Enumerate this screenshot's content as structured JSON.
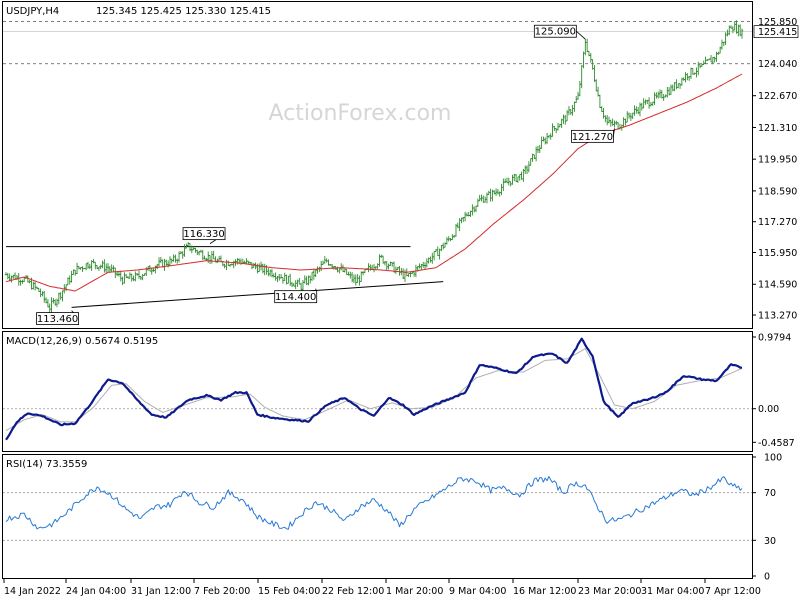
{
  "chart_data": [
    {
      "type": "candlestick",
      "panel": "price",
      "header": {
        "symbol": "USDJPY,H4",
        "ohlc": "125.345 125.425 125.330 125.415"
      },
      "watermark": "ActionForex.com",
      "ylim": [
        112.8,
        126.6
      ],
      "y_ticks": [
        "113.270",
        "114.590",
        "115.950",
        "117.270",
        "118.590",
        "119.950",
        "121.310",
        "122.670"
      ],
      "current_price_label": "125.415",
      "level_lines": [
        {
          "value": 125.85,
          "label": "125.850",
          "style": "dashed"
        },
        {
          "value": 124.04,
          "label": "124.040",
          "style": "dashed"
        }
      ],
      "annotations": [
        {
          "label": "113.460",
          "value": 113.46
        },
        {
          "label": "116.330",
          "value": 116.33
        },
        {
          "label": "114.400",
          "value": 114.4
        },
        {
          "label": "125.090",
          "value": 125.09
        },
        {
          "label": "121.270",
          "value": 121.27
        }
      ],
      "series": [
        {
          "kind": "ohlc",
          "anchors": [
            [
              0,
              115.0
            ],
            [
              10,
              114.8
            ],
            [
              18,
              114.3
            ],
            [
              24,
              113.6
            ],
            [
              30,
              114.2
            ],
            [
              38,
              115.2
            ],
            [
              46,
              115.5
            ],
            [
              56,
              115.3
            ],
            [
              64,
              114.8
            ],
            [
              72,
              114.9
            ],
            [
              82,
              115.4
            ],
            [
              92,
              115.6
            ],
            [
              100,
              116.2
            ],
            [
              110,
              115.8
            ],
            [
              118,
              115.5
            ],
            [
              128,
              115.6
            ],
            [
              138,
              115.3
            ],
            [
              146,
              115.1
            ],
            [
              154,
              114.8
            ],
            [
              162,
              114.5
            ],
            [
              170,
              115.1
            ],
            [
              176,
              115.6
            ],
            [
              184,
              115.2
            ],
            [
              192,
              114.7
            ],
            [
              200,
              115.3
            ],
            [
              206,
              115.7
            ],
            [
              214,
              115.2
            ],
            [
              220,
              114.9
            ],
            [
              228,
              115.4
            ],
            [
              236,
              115.9
            ],
            [
              244,
              116.6
            ],
            [
              252,
              117.5
            ],
            [
              260,
              118.2
            ],
            [
              268,
              118.5
            ],
            [
              276,
              119.0
            ],
            [
              284,
              119.3
            ],
            [
              292,
              120.4
            ],
            [
              300,
              121.2
            ],
            [
              308,
              121.8
            ],
            [
              314,
              122.6
            ],
            [
              318,
              125.0
            ],
            [
              322,
              123.8
            ],
            [
              326,
              122.3
            ],
            [
              330,
              121.5
            ],
            [
              336,
              121.4
            ],
            [
              342,
              121.8
            ],
            [
              350,
              122.3
            ],
            [
              358,
              122.6
            ],
            [
              366,
              123.0
            ],
            [
              374,
              123.6
            ],
            [
              382,
              123.9
            ],
            [
              390,
              124.4
            ],
            [
              398,
              125.7
            ],
            [
              404,
              125.4
            ]
          ]
        },
        {
          "kind": "ma",
          "name": "",
          "anchors": [
            [
              0,
              114.7
            ],
            [
              10,
              114.9
            ],
            [
              24,
              114.5
            ],
            [
              38,
              114.3
            ],
            [
              56,
              115.1
            ],
            [
              72,
              115.2
            ],
            [
              92,
              115.4
            ],
            [
              110,
              115.6
            ],
            [
              128,
              115.5
            ],
            [
              146,
              115.3
            ],
            [
              162,
              115.2
            ],
            [
              184,
              115.3
            ],
            [
              206,
              115.2
            ],
            [
              220,
              115.1
            ],
            [
              236,
              115.3
            ],
            [
              252,
              116.1
            ],
            [
              268,
              117.2
            ],
            [
              284,
              118.2
            ],
            [
              300,
              119.3
            ],
            [
              314,
              120.4
            ],
            [
              326,
              121.0
            ],
            [
              342,
              121.4
            ],
            [
              358,
              121.9
            ],
            [
              374,
              122.4
            ],
            [
              390,
              123.0
            ],
            [
              404,
              123.6
            ]
          ]
        }
      ],
      "trendlines": [
        {
          "from": [
            0,
            116.2
          ],
          "to": [
            222,
            116.2
          ]
        },
        {
          "from": [
            36,
            113.6
          ],
          "to": [
            240,
            114.7
          ]
        }
      ]
    },
    {
      "type": "line",
      "panel": "macd",
      "header": "MACD(12,26,9) 0.5674 0.5195",
      "ylim": [
        -0.55,
        1.02
      ],
      "y_ticks": [
        "0.9794",
        "0.00",
        "-0.4587"
      ],
      "zero_line": 0,
      "series": [
        {
          "name": "MACD",
          "style": "histogram-line",
          "anchors": [
            [
              0,
              -0.42
            ],
            [
              6,
              -0.18
            ],
            [
              12,
              -0.06
            ],
            [
              20,
              -0.1
            ],
            [
              30,
              -0.22
            ],
            [
              38,
              -0.2
            ],
            [
              46,
              0.05
            ],
            [
              56,
              0.4
            ],
            [
              64,
              0.35
            ],
            [
              72,
              0.12
            ],
            [
              80,
              -0.08
            ],
            [
              88,
              -0.12
            ],
            [
              100,
              0.12
            ],
            [
              110,
              0.18
            ],
            [
              118,
              0.12
            ],
            [
              126,
              0.22
            ],
            [
              132,
              0.22
            ],
            [
              138,
              -0.08
            ],
            [
              146,
              -0.12
            ],
            [
              156,
              -0.15
            ],
            [
              166,
              -0.17
            ],
            [
              176,
              0.05
            ],
            [
              186,
              0.15
            ],
            [
              194,
              0.0
            ],
            [
              202,
              -0.1
            ],
            [
              210,
              0.15
            ],
            [
              218,
              0.05
            ],
            [
              224,
              -0.08
            ],
            [
              232,
              0.02
            ],
            [
              240,
              0.1
            ],
            [
              252,
              0.22
            ],
            [
              260,
              0.6
            ],
            [
              270,
              0.55
            ],
            [
              280,
              0.48
            ],
            [
              290,
              0.72
            ],
            [
              300,
              0.75
            ],
            [
              308,
              0.62
            ],
            [
              316,
              0.95
            ],
            [
              322,
              0.72
            ],
            [
              328,
              0.1
            ],
            [
              336,
              -0.12
            ],
            [
              344,
              0.08
            ],
            [
              352,
              0.12
            ],
            [
              362,
              0.22
            ],
            [
              372,
              0.45
            ],
            [
              382,
              0.4
            ],
            [
              390,
              0.38
            ],
            [
              398,
              0.6
            ],
            [
              404,
              0.56
            ]
          ]
        },
        {
          "name": "Signal",
          "style": "line",
          "anchors": [
            [
              0,
              -0.3
            ],
            [
              10,
              -0.15
            ],
            [
              20,
              -0.08
            ],
            [
              30,
              -0.18
            ],
            [
              38,
              -0.18
            ],
            [
              48,
              0.02
            ],
            [
              58,
              0.32
            ],
            [
              66,
              0.34
            ],
            [
              76,
              0.1
            ],
            [
              86,
              -0.05
            ],
            [
              98,
              0.05
            ],
            [
              110,
              0.15
            ],
            [
              124,
              0.16
            ],
            [
              134,
              0.2
            ],
            [
              142,
              0.02
            ],
            [
              152,
              -0.1
            ],
            [
              164,
              -0.15
            ],
            [
              176,
              -0.02
            ],
            [
              188,
              0.12
            ],
            [
              200,
              0.0
            ],
            [
              212,
              0.08
            ],
            [
              222,
              0.0
            ],
            [
              234,
              0.02
            ],
            [
              246,
              0.15
            ],
            [
              258,
              0.42
            ],
            [
              270,
              0.52
            ],
            [
              284,
              0.5
            ],
            [
              296,
              0.66
            ],
            [
              308,
              0.68
            ],
            [
              318,
              0.82
            ],
            [
              326,
              0.45
            ],
            [
              334,
              0.05
            ],
            [
              344,
              0.0
            ],
            [
              356,
              0.1
            ],
            [
              368,
              0.32
            ],
            [
              380,
              0.38
            ],
            [
              392,
              0.42
            ],
            [
              404,
              0.55
            ]
          ]
        }
      ]
    },
    {
      "type": "line",
      "panel": "rsi",
      "header": "RSI(14) 73.3559",
      "ylim": [
        0,
        100
      ],
      "y_ticks": [
        "100",
        "70",
        "30",
        "0"
      ],
      "level_lines": [
        70,
        30
      ],
      "series": [
        {
          "name": "RSI",
          "style": "line",
          "anchors": [
            [
              0,
              48
            ],
            [
              10,
              52
            ],
            [
              18,
              40
            ],
            [
              26,
              44
            ],
            [
              34,
              54
            ],
            [
              42,
              66
            ],
            [
              50,
              75
            ],
            [
              58,
              68
            ],
            [
              66,
              56
            ],
            [
              74,
              48
            ],
            [
              82,
              58
            ],
            [
              90,
              60
            ],
            [
              98,
              72
            ],
            [
              106,
              62
            ],
            [
              114,
              58
            ],
            [
              122,
              70
            ],
            [
              130,
              64
            ],
            [
              138,
              50
            ],
            [
              146,
              44
            ],
            [
              154,
              40
            ],
            [
              162,
              52
            ],
            [
              170,
              62
            ],
            [
              178,
              56
            ],
            [
              186,
              46
            ],
            [
              194,
              58
            ],
            [
              202,
              64
            ],
            [
              210,
              54
            ],
            [
              216,
              42
            ],
            [
              224,
              56
            ],
            [
              232,
              64
            ],
            [
              240,
              72
            ],
            [
              250,
              82
            ],
            [
              258,
              80
            ],
            [
              266,
              72
            ],
            [
              274,
              74
            ],
            [
              282,
              68
            ],
            [
              290,
              80
            ],
            [
              298,
              82
            ],
            [
              306,
              70
            ],
            [
              312,
              78
            ],
            [
              318,
              76
            ],
            [
              324,
              60
            ],
            [
              330,
              46
            ],
            [
              338,
              48
            ],
            [
              346,
              54
            ],
            [
              354,
              60
            ],
            [
              362,
              66
            ],
            [
              370,
              72
            ],
            [
              378,
              68
            ],
            [
              386,
              74
            ],
            [
              394,
              82
            ],
            [
              398,
              76
            ],
            [
              404,
              73
            ]
          ]
        }
      ]
    }
  ],
  "time_axis": {
    "labels": [
      "14 Jan 2022",
      "24 Jan 04:00",
      "31 Jan 12:00",
      "7 Feb 20:00",
      "15 Feb 04:00",
      "22 Feb 12:00",
      "1 Mar 20:00",
      "9 Mar 04:00",
      "16 Mar 12:00",
      "23 Mar 20:00",
      "31 Mar 04:00",
      "7 Apr 12:00"
    ]
  },
  "colors": {
    "candle": "#2e8b2e",
    "ma": "#d42a2a",
    "macd": "#0c1a8c",
    "signal": "#b0b0b0",
    "rsi": "#2a7ad4",
    "grid": "#9a9a9a",
    "watermark": "#d6d6d6"
  }
}
